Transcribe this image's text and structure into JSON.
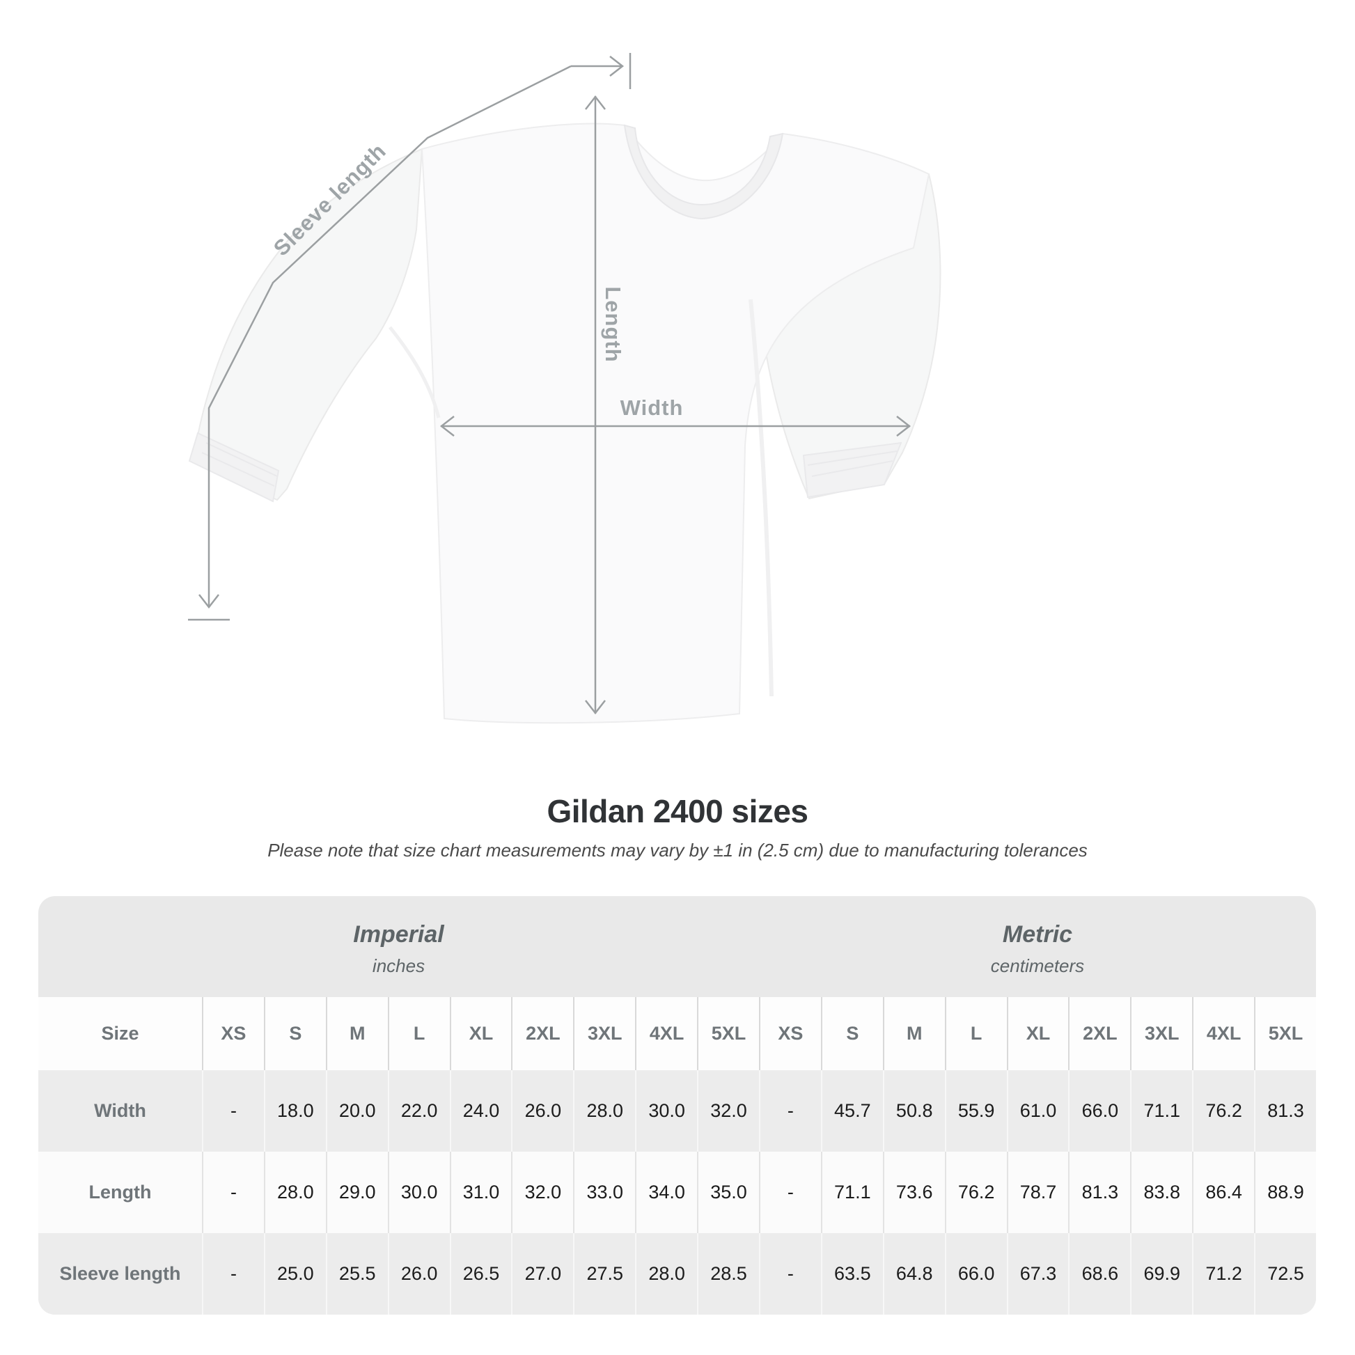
{
  "diagram": {
    "sleeve_length_label": "Sleeve length",
    "length_label": "Length",
    "width_label": "Width"
  },
  "title": "Gildan 2400 sizes",
  "subtitle": "Please note that size chart measurements may vary by ±1 in (2.5 cm) due to manufacturing tolerances",
  "unit_groups": [
    {
      "name": "Imperial",
      "unit": "inches"
    },
    {
      "name": "Metric",
      "unit": "centimeters"
    }
  ],
  "chart_data": {
    "type": "table",
    "title": "Gildan 2400 sizes",
    "row_header": "Size",
    "columns": [
      "XS",
      "S",
      "M",
      "L",
      "XL",
      "2XL",
      "3XL",
      "4XL",
      "5XL"
    ],
    "unit_groups": [
      {
        "name": "Imperial",
        "unit": "inches"
      },
      {
        "name": "Metric",
        "unit": "centimeters"
      }
    ],
    "rows": [
      {
        "label": "Width",
        "imperial": [
          "-",
          "18.0",
          "20.0",
          "22.0",
          "24.0",
          "26.0",
          "28.0",
          "30.0",
          "32.0"
        ],
        "metric": [
          "-",
          "45.7",
          "50.8",
          "55.9",
          "61.0",
          "66.0",
          "71.1",
          "76.2",
          "81.3"
        ]
      },
      {
        "label": "Length",
        "imperial": [
          "-",
          "28.0",
          "29.0",
          "30.0",
          "31.0",
          "32.0",
          "33.0",
          "34.0",
          "35.0"
        ],
        "metric": [
          "-",
          "71.1",
          "73.6",
          "76.2",
          "78.7",
          "81.3",
          "83.8",
          "86.4",
          "88.9"
        ]
      },
      {
        "label": "Sleeve length",
        "imperial": [
          "-",
          "25.0",
          "25.5",
          "26.0",
          "26.5",
          "27.0",
          "27.5",
          "28.0",
          "28.5"
        ],
        "metric": [
          "-",
          "63.5",
          "64.8",
          "66.0",
          "67.3",
          "68.6",
          "69.9",
          "71.2",
          "72.5"
        ]
      }
    ]
  },
  "colors": {
    "title_text": "#303336",
    "unit_text": "#5d6467",
    "header_text": "#6f7579",
    "value_text": "#1b1b1b",
    "table_bg": "#e9e9e9",
    "stripe_row": "#ececec",
    "measure_line": "#9b9fa1",
    "measure_label": "#9ea4a7"
  }
}
